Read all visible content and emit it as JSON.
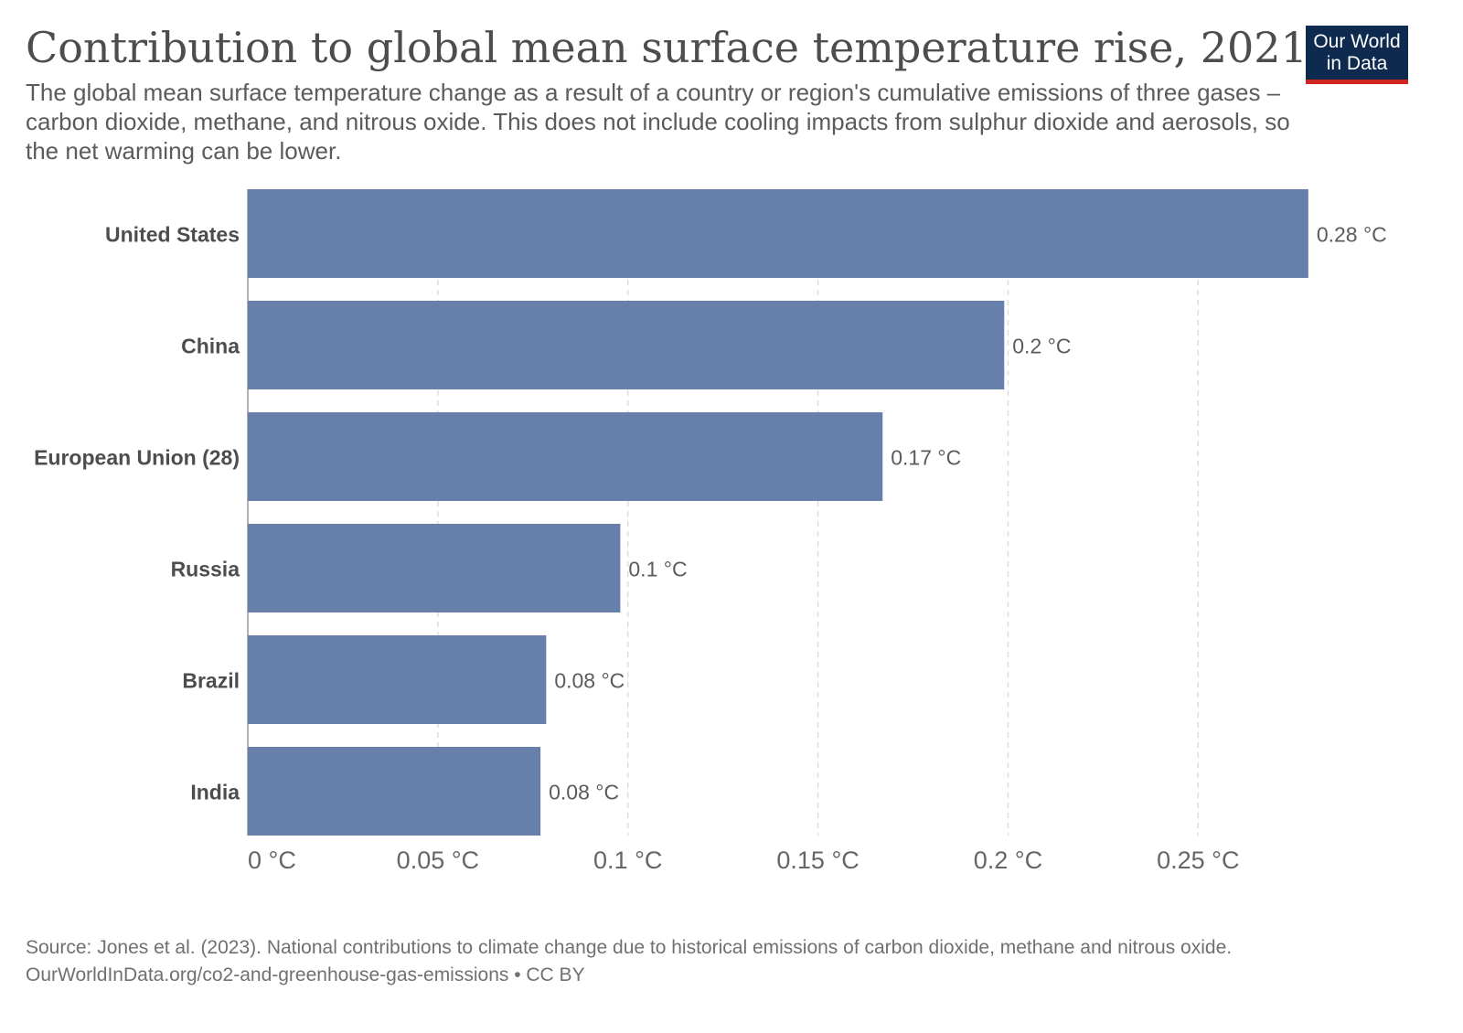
{
  "header": {
    "title": "Contribution to global mean surface temperature rise, 2021",
    "subtitle": "The global mean surface temperature change as a result of a country or region's cumulative emissions of three gases – carbon dioxide, methane, and nitrous oxide. This does not include cooling impacts from sulphur dioxide and aerosols, so the net warming can be lower."
  },
  "logo": {
    "line1": "Our World",
    "line2": "in Data"
  },
  "footer": {
    "source": "Source: Jones et al. (2023). National contributions to climate change due to historical emissions of carbon dioxide, methane and nitrous oxide.",
    "link": "OurWorldInData.org/co2-and-greenhouse-gas-emissions • CC BY"
  },
  "colors": {
    "bar": "#6780ab",
    "grid": "#dddddd",
    "axis": "#999999",
    "text": "#4d4d4d",
    "logo_bg": "#0e2a4f",
    "logo_accent": "#ce261e"
  },
  "chart_data": {
    "type": "bar",
    "orientation": "horizontal",
    "title": "Contribution to global mean surface temperature rise, 2021",
    "unit": "°C",
    "categories": [
      "United States",
      "China",
      "European Union (28)",
      "Russia",
      "Brazil",
      "India"
    ],
    "values": [
      0.279,
      0.199,
      0.167,
      0.098,
      0.0785,
      0.077
    ],
    "value_labels": [
      "0.28 °C",
      "0.2 °C",
      "0.17 °C",
      "0.1 °C",
      "0.08 °C",
      "0.08 °C"
    ],
    "xlim": [
      0,
      0.28
    ],
    "xticks": [
      0,
      0.05,
      0.1,
      0.15,
      0.2,
      0.25
    ],
    "xtick_labels": [
      "0 °C",
      "0.05 °C",
      "0.1 °C",
      "0.15 °C",
      "0.2 °C",
      "0.25 °C"
    ],
    "grid": "vertical-dashed",
    "legend": "none"
  }
}
